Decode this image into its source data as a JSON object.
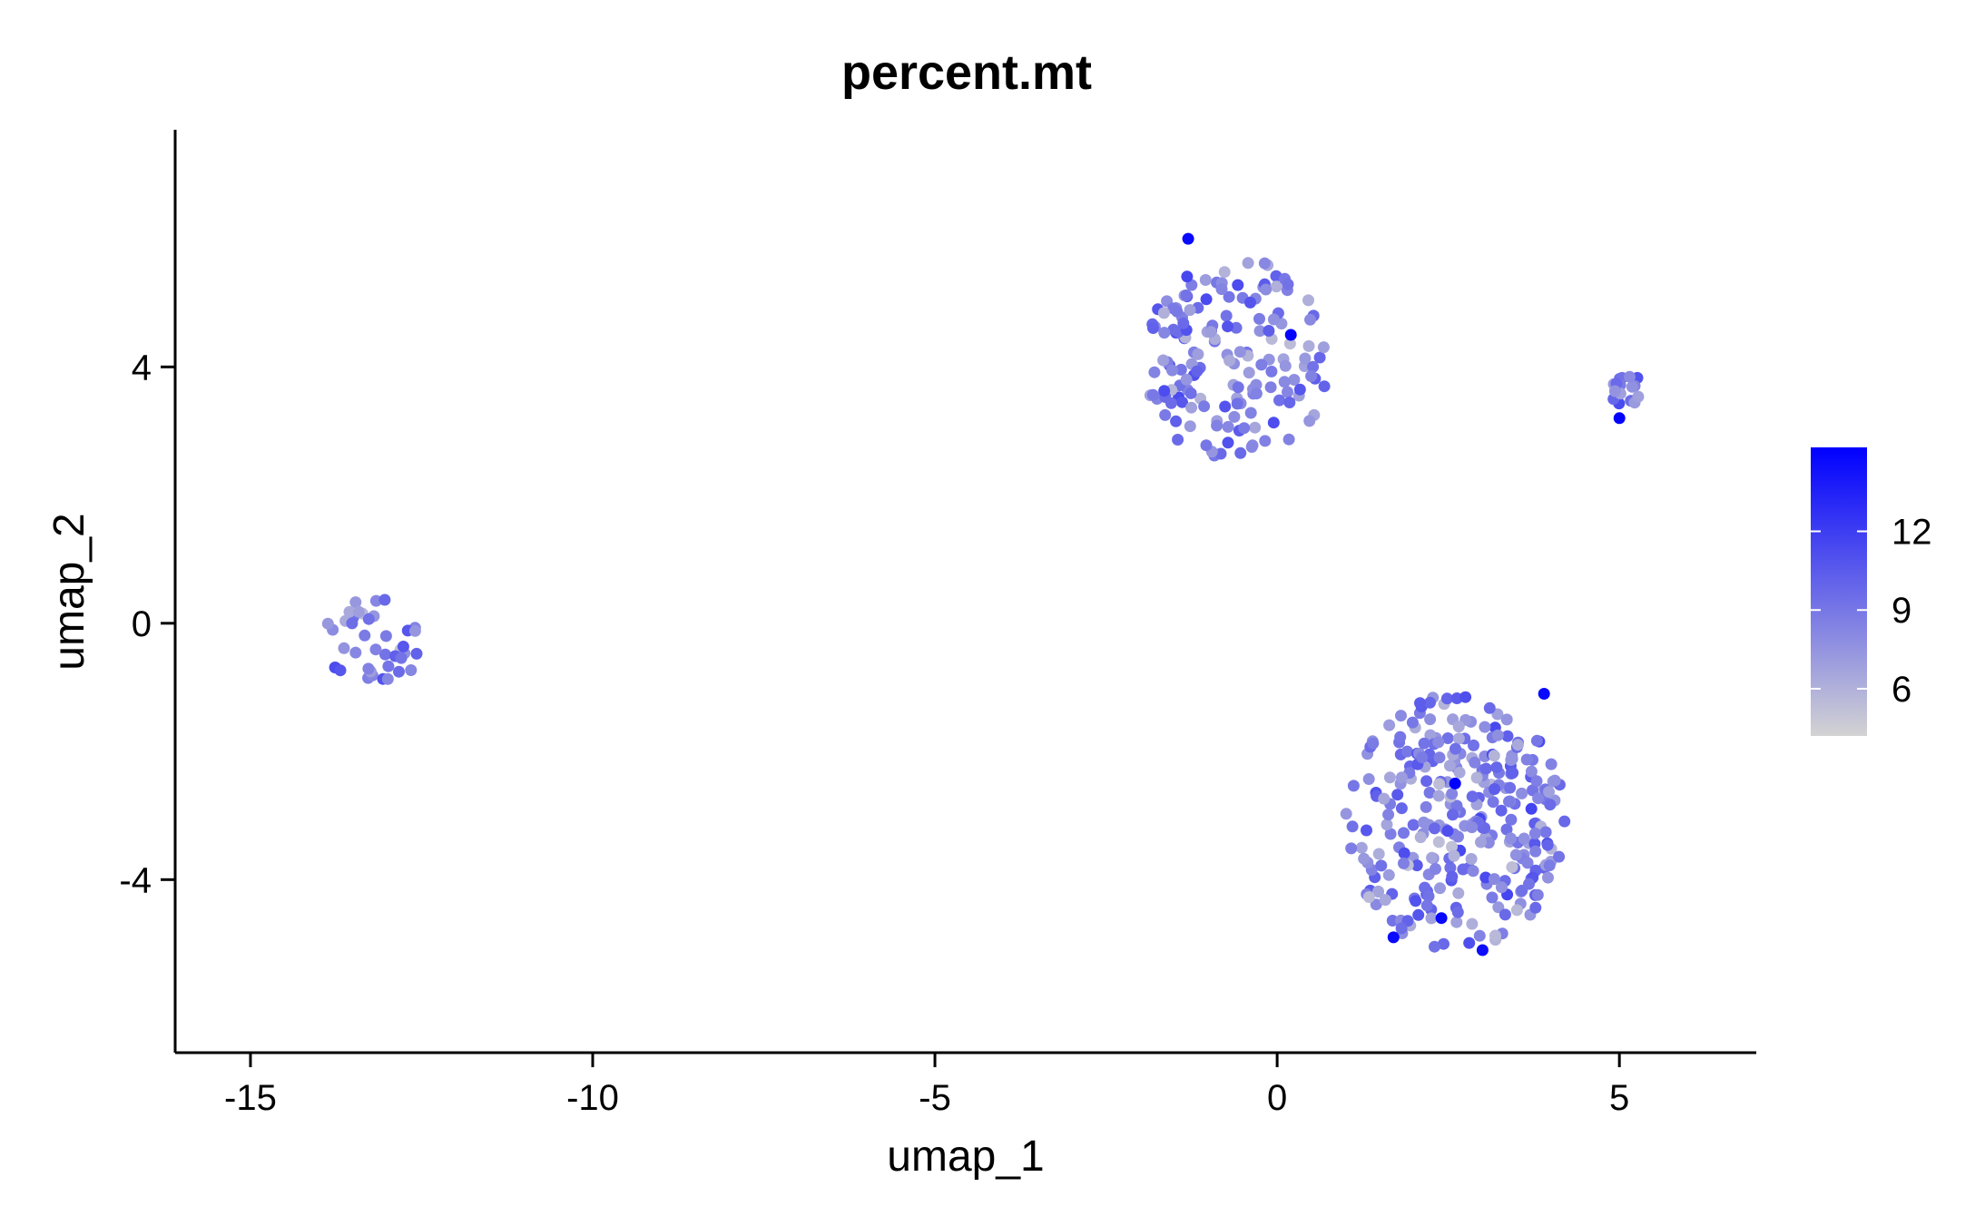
{
  "chart_data": {
    "type": "scatter",
    "title": "percent.mt",
    "xlabel": "umap_1",
    "ylabel": "umap_2",
    "xlim": [
      -16.1,
      7.0
    ],
    "ylim": [
      -6.7,
      7.7
    ],
    "x_ticks": [
      -15,
      -10,
      -5,
      0,
      5
    ],
    "y_ticks": [
      -4,
      0,
      4
    ],
    "x_tick_labels": [
      "-15",
      "-10",
      "-5",
      "0",
      "5"
    ],
    "y_tick_labels": [
      "-4",
      "0",
      "4"
    ],
    "color_scale": {
      "variable": "percent.mt",
      "low_color": "#d3d3d3",
      "high_color": "#0000ff",
      "range": [
        4.2,
        15.2
      ],
      "ticks": [
        6,
        9,
        12
      ],
      "tick_labels": [
        "6",
        "9",
        "12"
      ],
      "legend_position": "right"
    },
    "grid": false,
    "clusters": [
      {
        "center": [
          -13.2,
          -0.3
        ],
        "radius": [
          0.7,
          0.75
        ],
        "count": 40,
        "angle_deg": 35
      },
      {
        "center": [
          -0.6,
          4.1
        ],
        "radius": [
          1.35,
          1.6
        ],
        "count": 160,
        "angle_deg": 0
      },
      {
        "center": [
          5.1,
          3.7
        ],
        "radius": [
          0.25,
          0.3
        ],
        "count": 16,
        "angle_deg": 0
      },
      {
        "center": [
          2.6,
          -3.1
        ],
        "radius": [
          1.6,
          2.0
        ],
        "count": 300,
        "angle_deg": 0
      }
    ],
    "highlight_points": [
      [
        -1.3,
        6.0
      ],
      [
        5.0,
        3.2
      ],
      [
        1.7,
        -4.9
      ],
      [
        2.6,
        -2.5
      ],
      [
        3.0,
        -5.1
      ],
      [
        0.2,
        4.5
      ],
      [
        3.9,
        -1.1
      ],
      [
        2.4,
        -4.6
      ]
    ]
  }
}
